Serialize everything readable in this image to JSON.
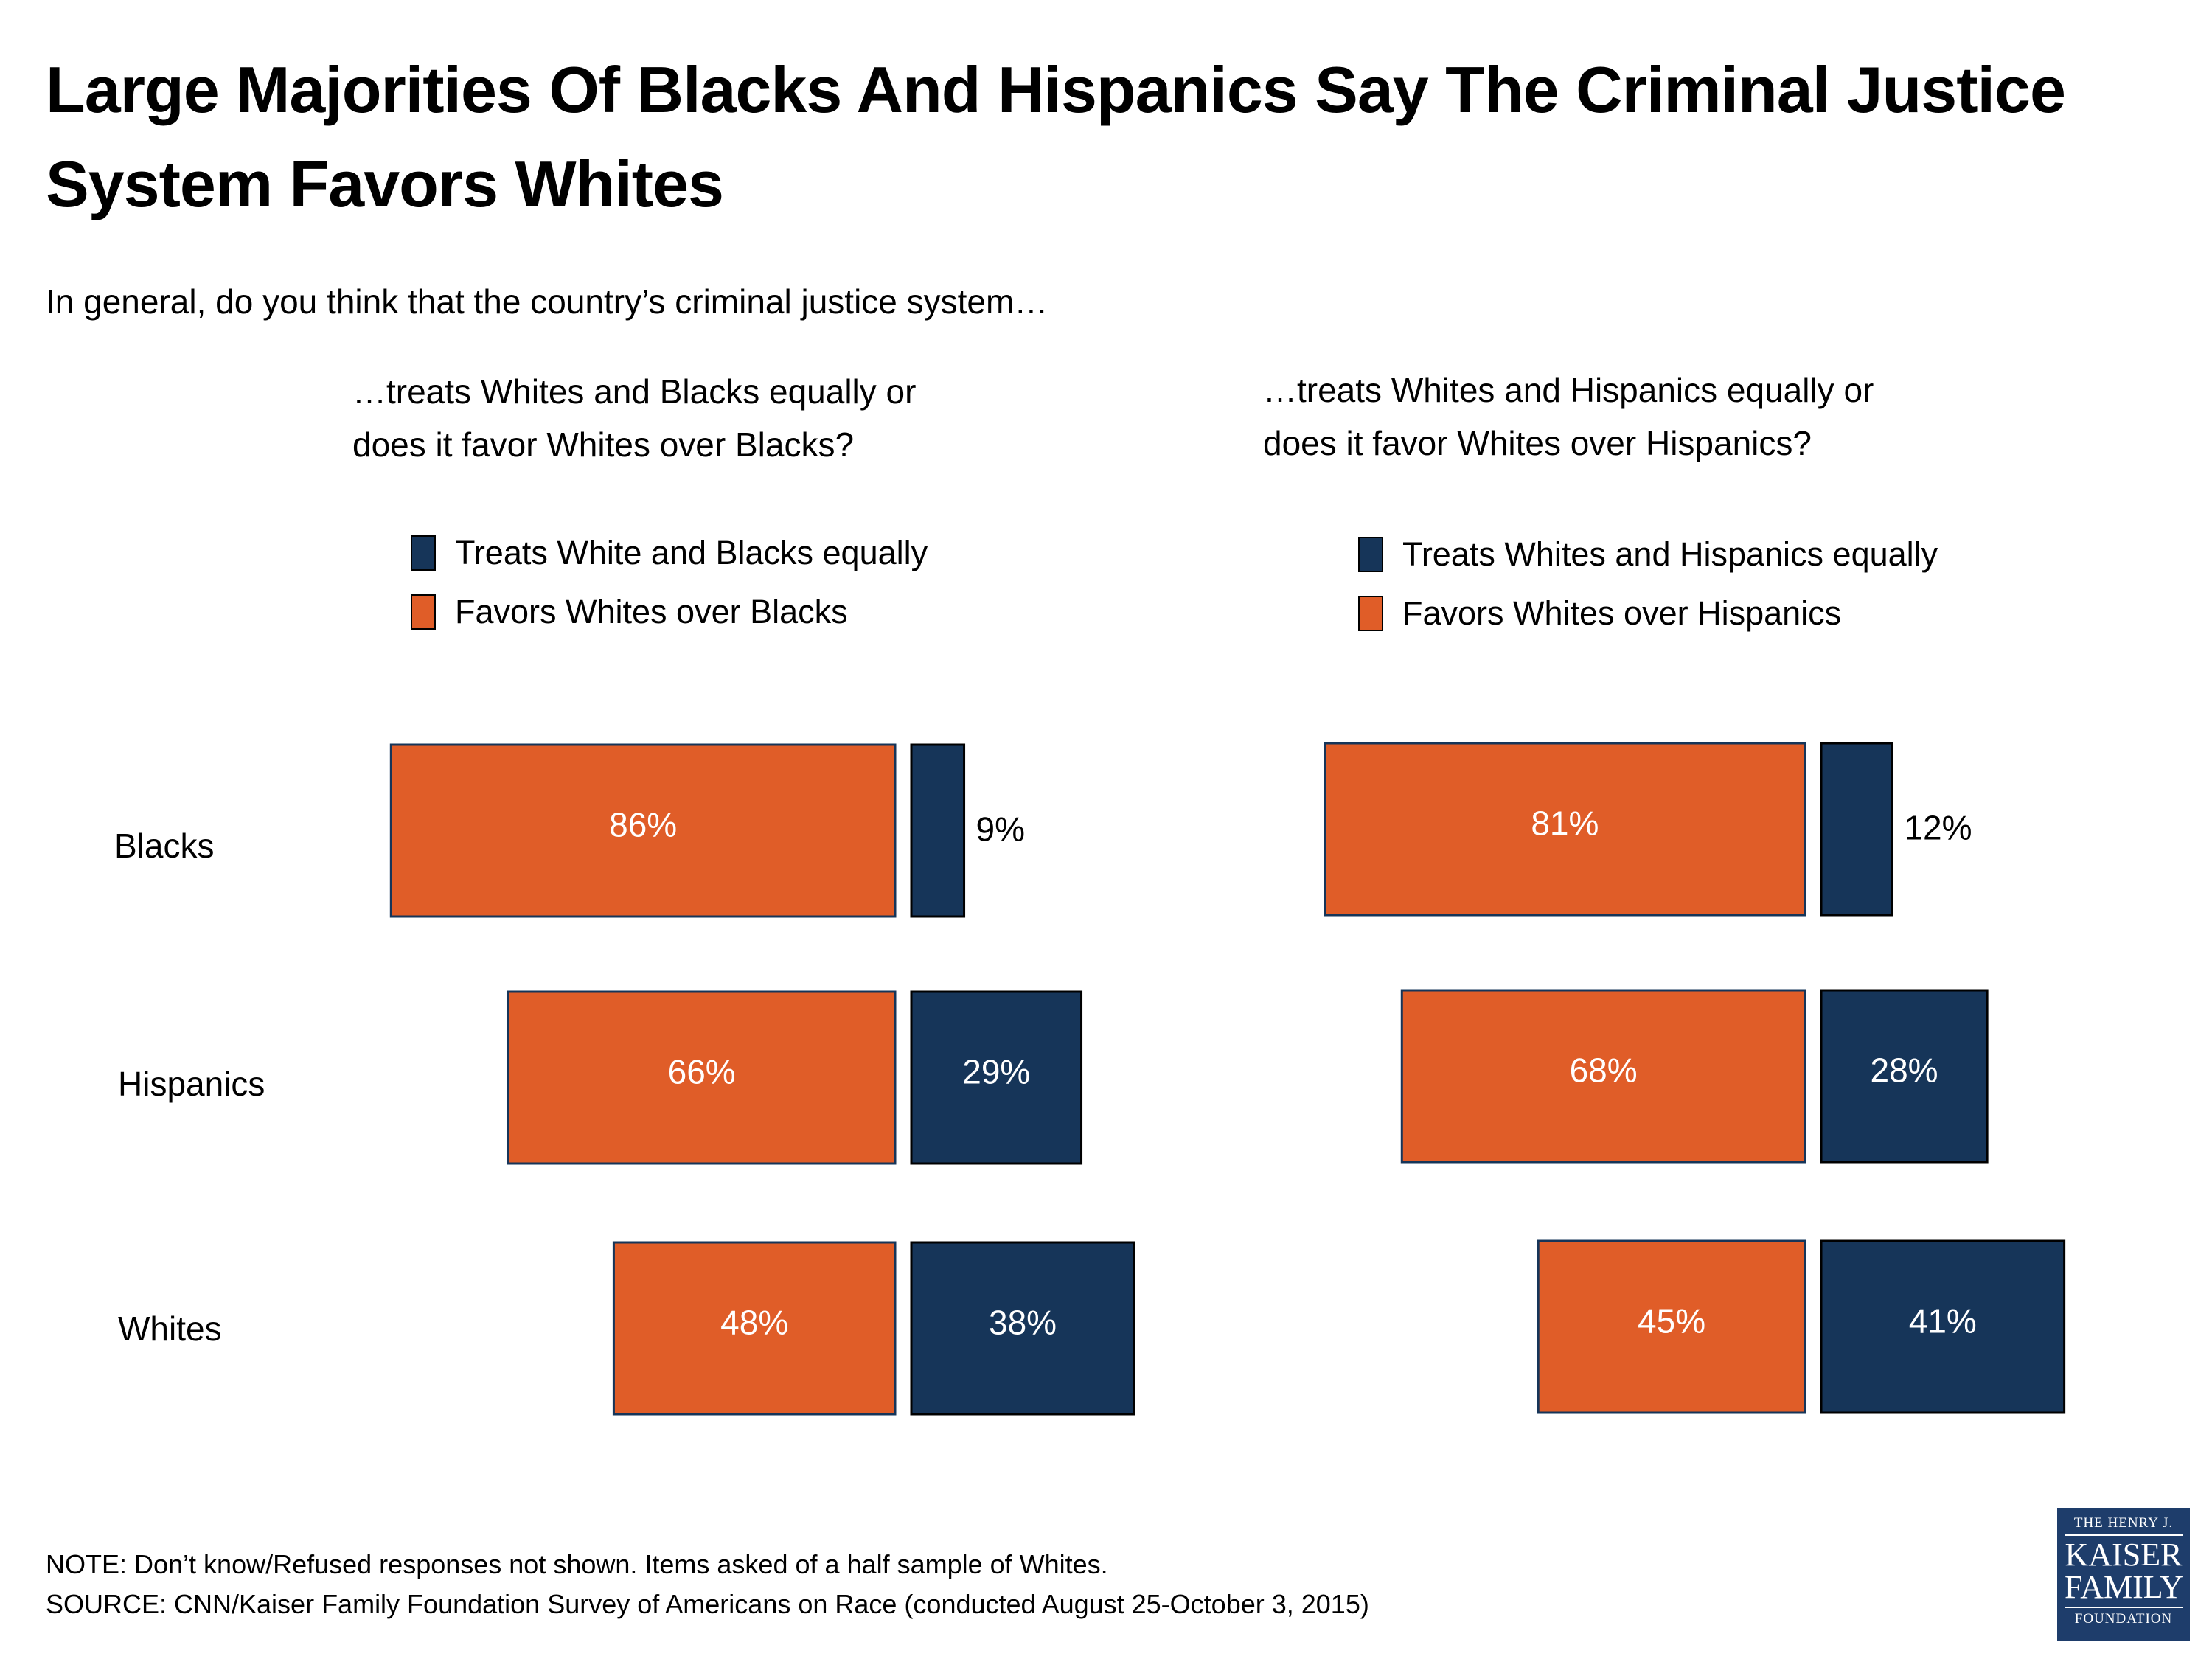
{
  "title": "Large Majorities Of Blacks And Hispanics Say The Criminal Justice System Favors Whites",
  "subtitle": "In general, do you think that the country’s criminal justice system…",
  "colors": {
    "favors": "#e05d28",
    "equally": "#163559",
    "label_inside": "#ffffff",
    "label_outside": "#000000"
  },
  "chart_data": [
    {
      "type": "bar",
      "orientation": "horizontal-diverging",
      "title": "…treats Whites and Blacks equally or does it favor Whites over Blacks?",
      "title_lines": [
        "…treats Whites and Blacks equally or",
        "does it favor Whites over Blacks?"
      ],
      "categories": [
        "Blacks",
        "Hispanics",
        "Whites"
      ],
      "series": [
        {
          "name": "Treats White and Blacks equally",
          "key": "equally",
          "values": [
            9,
            29,
            38
          ],
          "labels": [
            "9%",
            "29%",
            "38%"
          ]
        },
        {
          "name": "Favors Whites over Blacks",
          "key": "favors",
          "values": [
            86,
            66,
            48
          ],
          "labels": [
            "86%",
            "66%",
            "48%"
          ]
        }
      ],
      "unit": "%",
      "legend_position": "top",
      "grid": false
    },
    {
      "type": "bar",
      "orientation": "horizontal-diverging",
      "title": "…treats Whites and Hispanics equally or does it favor Whites over Hispanics?",
      "title_lines": [
        "…treats Whites and Hispanics equally or",
        "does it favor Whites over Hispanics?"
      ],
      "categories": [
        "Blacks",
        "Hispanics",
        "Whites"
      ],
      "series": [
        {
          "name": "Treats Whites and Hispanics equally",
          "key": "equally",
          "values": [
            12,
            28,
            41
          ],
          "labels": [
            "12%",
            "28%",
            "41%"
          ]
        },
        {
          "name": "Favors Whites over Hispanics",
          "key": "favors",
          "values": [
            81,
            68,
            45
          ],
          "labels": [
            "81%",
            "68%",
            "45%"
          ]
        }
      ],
      "unit": "%",
      "legend_position": "top",
      "grid": false
    }
  ],
  "footer": {
    "note": "NOTE: Don’t know/Refused responses not shown. Items asked of a half sample of Whites.",
    "source": "SOURCE: CNN/Kaiser Family Foundation Survey of Americans on Race (conducted August 25-October 3, 2015)"
  },
  "logo": {
    "line1": "THE HENRY J.",
    "line2": "KAISER",
    "line3": "FAMILY",
    "line4": "FOUNDATION"
  }
}
